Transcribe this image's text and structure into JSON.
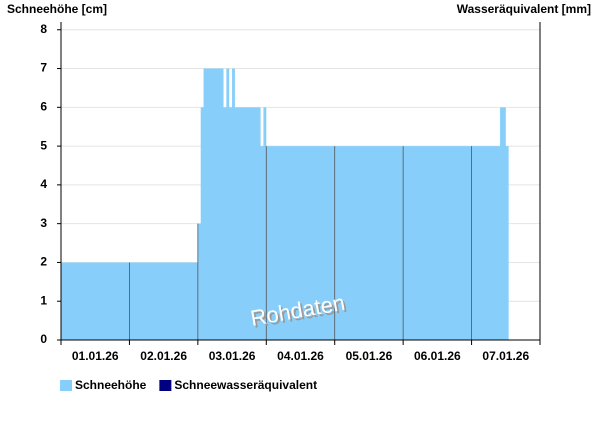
{
  "chart_data": {
    "type": "step-area",
    "y_label": "Schneehöhe [cm]",
    "y2_label": "Wasseräquivalent [mm]",
    "watermark": "Rohdaten",
    "x": [
      0,
      48,
      49,
      50,
      57,
      58,
      59,
      60,
      61,
      70,
      71,
      72,
      154,
      156,
      157
    ],
    "series": [
      {
        "name": "Schneehöhe",
        "color": "#87cefa",
        "values": [
          2,
          3,
          6,
          7,
          6,
          7,
          6,
          7,
          6,
          5,
          6,
          5,
          6,
          5,
          5
        ]
      },
      {
        "name": "Schneewasseräquivalent",
        "color": "#000080",
        "values": [
          null,
          null,
          null,
          null,
          null,
          null,
          null,
          null,
          null,
          null,
          null,
          null,
          null,
          null,
          null
        ]
      }
    ],
    "xlim": [
      0,
      168
    ],
    "xticks": [
      0,
      24,
      48,
      72,
      96,
      120,
      144,
      168
    ],
    "xlabels": [
      {
        "value": 12,
        "label": "01.01.26"
      },
      {
        "value": 36,
        "label": "02.01.26"
      },
      {
        "value": 60,
        "label": "03.01.26"
      },
      {
        "value": 84,
        "label": "04.01.26"
      },
      {
        "value": 108,
        "label": "05.01.26"
      },
      {
        "value": 132,
        "label": "06.01.26"
      },
      {
        "value": 156,
        "label": "07.01.26"
      }
    ],
    "ylim": [
      0,
      8.2
    ],
    "yticks": [
      0,
      1,
      2,
      3,
      4,
      5,
      6,
      7,
      8
    ],
    "grid": true
  }
}
